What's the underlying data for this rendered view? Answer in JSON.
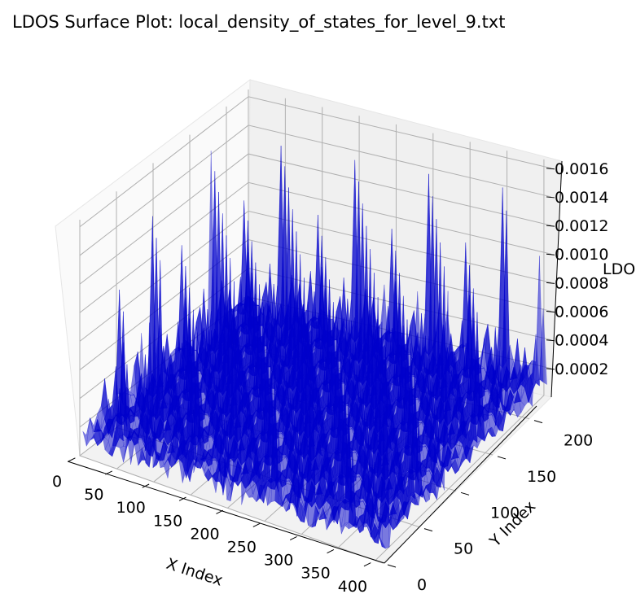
{
  "chart_data": {
    "type": "surface",
    "title": "LDOS Surface Plot: local_density_of_states_for_level_9.txt",
    "xlabel": "X Index",
    "ylabel": "Y Index",
    "zlabel": "LDOS",
    "xlim": [
      0,
      410
    ],
    "ylim": [
      0,
      230
    ],
    "zlim": [
      0.0,
      0.00165
    ],
    "x_ticks": [
      "0",
      "50",
      "100",
      "150",
      "200",
      "250",
      "300",
      "350",
      "400"
    ],
    "y_ticks": [
      "0",
      "50",
      "100",
      "150",
      "200"
    ],
    "z_ticks": [
      "0.0002",
      "0.0004",
      "0.0006",
      "0.0008",
      "0.0010",
      "0.0012",
      "0.0014",
      "0.0016"
    ],
    "surface_color": "#0000cc",
    "surface_alpha": 0.5,
    "grid": true,
    "z_max_approx": 0.0016
  }
}
